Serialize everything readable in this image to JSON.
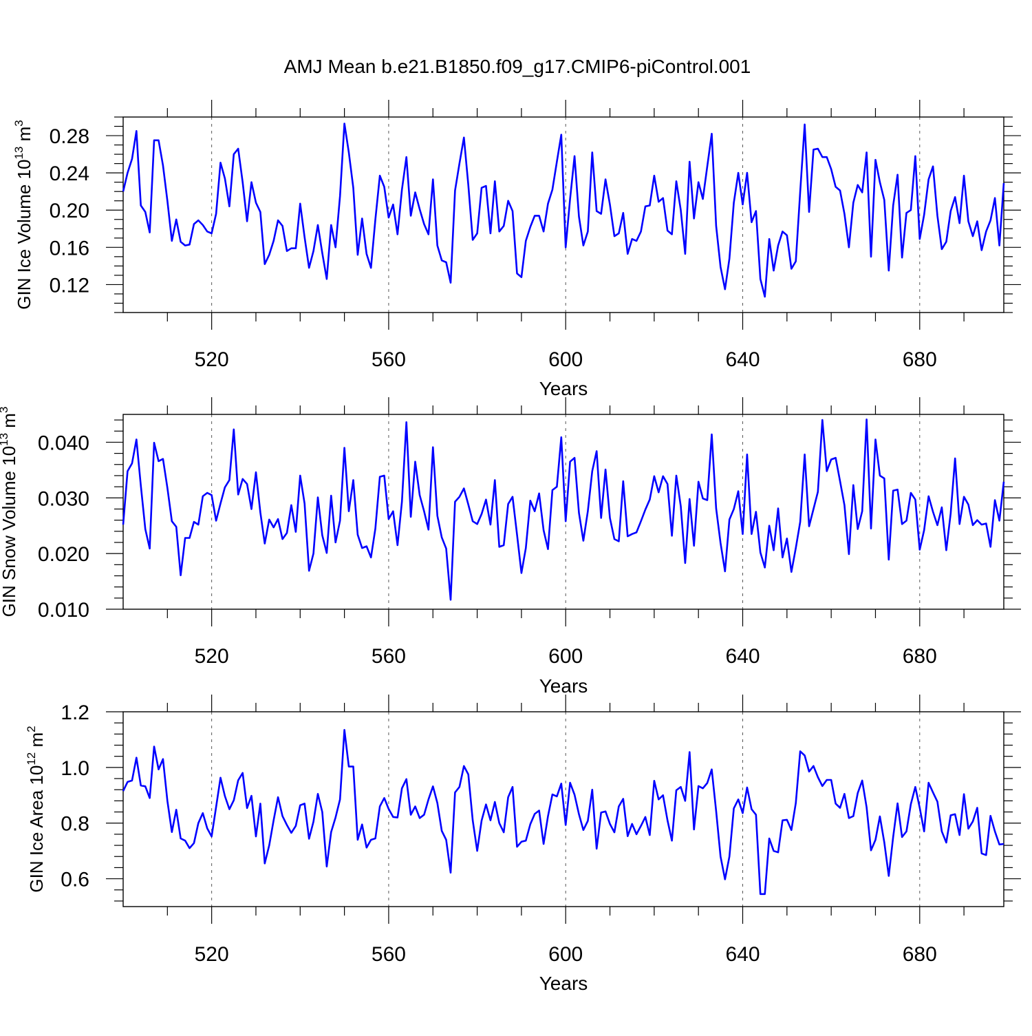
{
  "title": "AMJ Mean b.e21.B1850.f09_g17.CMIP6-piControl.001",
  "colors": {
    "line": "#0000ff",
    "axis": "#000000",
    "grid": "#555555"
  },
  "chart_data": [
    {
      "type": "line",
      "ylabel": "GIN Ice Volume 10",
      "ylabel_sup": "13",
      "ylabel_unit": " m",
      "ylabel_unit_sup": "3",
      "xlabel": "Years",
      "xlim": [
        500,
        699
      ],
      "ylim": [
        0.09,
        0.3
      ],
      "xticks": [
        520,
        560,
        600,
        640,
        680
      ],
      "xtick_labels": [
        "520",
        "560",
        "600",
        "640",
        "680"
      ],
      "yticks": [
        0.12,
        0.16,
        0.2,
        0.24,
        0.28
      ],
      "ytick_labels": [
        "0.12",
        "0.16",
        "0.20",
        "0.24",
        "0.28"
      ],
      "y_minor_step": 0.01,
      "x_minor_step": 10,
      "x_start": 500,
      "series": [
        {
          "values": [
            0.22,
            0.24,
            0.255,
            0.285,
            0.205,
            0.198,
            0.176,
            0.275,
            0.275,
            0.248,
            0.21,
            0.167,
            0.19,
            0.166,
            0.162,
            0.163,
            0.185,
            0.189,
            0.184,
            0.177,
            0.175,
            0.196,
            0.251,
            0.234,
            0.204,
            0.26,
            0.266,
            0.23,
            0.188,
            0.23,
            0.208,
            0.198,
            0.142,
            0.152,
            0.167,
            0.189,
            0.183,
            0.156,
            0.159,
            0.159,
            0.207,
            0.171,
            0.138,
            0.156,
            0.184,
            0.154,
            0.126,
            0.184,
            0.16,
            0.215,
            0.293,
            0.262,
            0.224,
            0.152,
            0.191,
            0.153,
            0.138,
            0.19,
            0.237,
            0.225,
            0.192,
            0.206,
            0.174,
            0.222,
            0.257,
            0.194,
            0.219,
            0.201,
            0.185,
            0.174,
            0.233,
            0.162,
            0.146,
            0.144,
            0.122,
            0.221,
            0.25,
            0.278,
            0.227,
            0.168,
            0.175,
            0.224,
            0.226,
            0.175,
            0.231,
            0.177,
            0.183,
            0.21,
            0.199,
            0.132,
            0.128,
            0.167,
            0.182,
            0.194,
            0.194,
            0.177,
            0.207,
            0.222,
            0.252,
            0.281,
            0.16,
            0.212,
            0.258,
            0.193,
            0.162,
            0.177,
            0.262,
            0.199,
            0.196,
            0.233,
            0.206,
            0.172,
            0.175,
            0.197,
            0.153,
            0.169,
            0.167,
            0.177,
            0.204,
            0.205,
            0.237,
            0.209,
            0.213,
            0.178,
            0.174,
            0.231,
            0.2,
            0.153,
            0.252,
            0.191,
            0.23,
            0.212,
            0.247,
            0.282,
            0.183,
            0.139,
            0.115,
            0.148,
            0.208,
            0.24,
            0.206,
            0.24,
            0.187,
            0.199,
            0.126,
            0.107,
            0.169,
            0.135,
            0.162,
            0.177,
            0.173,
            0.137,
            0.145,
            0.22,
            0.292,
            0.198,
            0.265,
            0.266,
            0.257,
            0.257,
            0.244,
            0.225,
            0.221,
            0.196,
            0.16,
            0.208,
            0.227,
            0.219,
            0.262,
            0.15,
            0.254,
            0.23,
            0.211,
            0.135,
            0.205,
            0.238,
            0.149,
            0.197,
            0.2,
            0.258,
            0.169,
            0.195,
            0.233,
            0.247,
            0.194,
            0.158,
            0.166,
            0.199,
            0.214,
            0.186,
            0.237,
            0.188,
            0.172,
            0.188,
            0.157,
            0.177,
            0.189,
            0.213,
            0.162,
            0.229
          ]
        }
      ]
    },
    {
      "type": "line",
      "ylabel": "GIN Snow Volume 10",
      "ylabel_sup": "13",
      "ylabel_unit": " m",
      "ylabel_unit_sup": "3",
      "xlabel": "Years",
      "xlim": [
        500,
        699
      ],
      "ylim": [
        0.01,
        0.045
      ],
      "xticks": [
        520,
        560,
        600,
        640,
        680
      ],
      "xtick_labels": [
        "520",
        "560",
        "600",
        "640",
        "680"
      ],
      "yticks": [
        0.01,
        0.02,
        0.03,
        0.04
      ],
      "ytick_labels": [
        "0.010",
        "0.020",
        "0.030",
        "0.040"
      ],
      "y_minor_step": 0.002,
      "x_minor_step": 10,
      "x_start": 500,
      "series": [
        {
          "values": [
            0.0252,
            0.0348,
            0.0362,
            0.0405,
            0.0322,
            0.0244,
            0.0209,
            0.0399,
            0.0366,
            0.037,
            0.0318,
            0.0258,
            0.0248,
            0.0161,
            0.0228,
            0.0228,
            0.0257,
            0.0252,
            0.0303,
            0.0309,
            0.0305,
            0.0259,
            0.029,
            0.0319,
            0.0332,
            0.0423,
            0.0306,
            0.0334,
            0.0325,
            0.028,
            0.0346,
            0.0274,
            0.0218,
            0.0261,
            0.0247,
            0.0262,
            0.0226,
            0.0237,
            0.0287,
            0.0239,
            0.034,
            0.029,
            0.0169,
            0.02,
            0.0301,
            0.0233,
            0.0201,
            0.0304,
            0.022,
            0.0259,
            0.039,
            0.0276,
            0.0332,
            0.0234,
            0.021,
            0.0213,
            0.0193,
            0.0245,
            0.0338,
            0.034,
            0.0262,
            0.0276,
            0.0215,
            0.0293,
            0.0436,
            0.0266,
            0.0365,
            0.0305,
            0.0276,
            0.0243,
            0.0391,
            0.0268,
            0.0229,
            0.0209,
            0.0117,
            0.0293,
            0.0302,
            0.0317,
            0.0288,
            0.0258,
            0.0253,
            0.0271,
            0.0297,
            0.0252,
            0.0332,
            0.0212,
            0.0215,
            0.0289,
            0.0302,
            0.0234,
            0.0165,
            0.021,
            0.0295,
            0.0276,
            0.0308,
            0.0242,
            0.0208,
            0.0314,
            0.032,
            0.0409,
            0.0258,
            0.0365,
            0.0372,
            0.0273,
            0.0223,
            0.0276,
            0.0348,
            0.0384,
            0.0264,
            0.0351,
            0.0264,
            0.0226,
            0.0222,
            0.033,
            0.0231,
            0.0235,
            0.0238,
            0.0258,
            0.0279,
            0.0297,
            0.0339,
            0.031,
            0.0339,
            0.0325,
            0.0232,
            0.034,
            0.0285,
            0.0183,
            0.0298,
            0.0214,
            0.0329,
            0.0299,
            0.0296,
            0.0414,
            0.0281,
            0.0219,
            0.0168,
            0.0261,
            0.028,
            0.0312,
            0.0235,
            0.0378,
            0.0235,
            0.0275,
            0.0202,
            0.0175,
            0.025,
            0.0206,
            0.0281,
            0.0193,
            0.0227,
            0.0167,
            0.021,
            0.0257,
            0.0378,
            0.0249,
            0.028,
            0.0311,
            0.044,
            0.0348,
            0.0369,
            0.0372,
            0.033,
            0.0287,
            0.0199,
            0.0323,
            0.0244,
            0.0276,
            0.0441,
            0.0245,
            0.0405,
            0.034,
            0.0335,
            0.0189,
            0.0313,
            0.0315,
            0.0253,
            0.0259,
            0.0309,
            0.0297,
            0.0207,
            0.0242,
            0.0303,
            0.0275,
            0.0251,
            0.0283,
            0.0206,
            0.0272,
            0.0371,
            0.0253,
            0.0302,
            0.0288,
            0.0251,
            0.026,
            0.0252,
            0.0254,
            0.0212,
            0.0296,
            0.0259,
            0.0329
          ]
        }
      ]
    },
    {
      "type": "line",
      "ylabel": "GIN Ice Area 10",
      "ylabel_sup": "12",
      "ylabel_unit": " m",
      "ylabel_unit_sup": "2",
      "xlabel": "Years",
      "xlim": [
        500,
        699
      ],
      "ylim": [
        0.5,
        1.2
      ],
      "xticks": [
        520,
        560,
        600,
        640,
        680
      ],
      "xtick_labels": [
        "520",
        "560",
        "600",
        "640",
        "680"
      ],
      "yticks": [
        0.6,
        0.8,
        1.0,
        1.2
      ],
      "ytick_labels": [
        "0.6",
        "0.8",
        "1.0",
        "1.2"
      ],
      "y_minor_step": 0.04,
      "x_minor_step": 10,
      "x_start": 500,
      "series": [
        {
          "values": [
            0.915,
            0.948,
            0.953,
            1.035,
            0.935,
            0.932,
            0.89,
            1.075,
            0.993,
            1.03,
            0.88,
            0.768,
            0.848,
            0.745,
            0.737,
            0.71,
            0.728,
            0.8,
            0.836,
            0.781,
            0.752,
            0.858,
            0.963,
            0.897,
            0.85,
            0.882,
            0.954,
            0.98,
            0.854,
            0.898,
            0.752,
            0.87,
            0.655,
            0.72,
            0.81,
            0.893,
            0.825,
            0.793,
            0.765,
            0.79,
            0.864,
            0.87,
            0.744,
            0.805,
            0.905,
            0.84,
            0.644,
            0.768,
            0.82,
            0.885,
            1.135,
            1.003,
            1.003,
            0.74,
            0.795,
            0.712,
            0.74,
            0.745,
            0.86,
            0.89,
            0.851,
            0.822,
            0.82,
            0.925,
            0.958,
            0.83,
            0.86,
            0.818,
            0.83,
            0.885,
            0.932,
            0.872,
            0.772,
            0.74,
            0.622,
            0.91,
            0.93,
            1.005,
            0.975,
            0.81,
            0.7,
            0.809,
            0.867,
            0.81,
            0.876,
            0.8,
            0.767,
            0.893,
            0.93,
            0.715,
            0.733,
            0.737,
            0.796,
            0.833,
            0.845,
            0.725,
            0.825,
            0.903,
            0.896,
            0.942,
            0.793,
            0.945,
            0.902,
            0.832,
            0.775,
            0.808,
            0.92,
            0.708,
            0.838,
            0.842,
            0.797,
            0.767,
            0.86,
            0.887,
            0.753,
            0.797,
            0.76,
            0.79,
            0.822,
            0.757,
            0.952,
            0.885,
            0.9,
            0.81,
            0.737,
            0.918,
            0.93,
            0.88,
            1.055,
            0.777,
            0.933,
            0.925,
            0.944,
            0.993,
            0.843,
            0.68,
            0.598,
            0.68,
            0.853,
            0.885,
            0.836,
            0.928,
            0.85,
            0.83,
            0.545,
            0.545,
            0.745,
            0.7,
            0.695,
            0.81,
            0.812,
            0.775,
            0.872,
            1.058,
            1.043,
            0.985,
            1.005,
            0.965,
            0.933,
            0.955,
            0.955,
            0.87,
            0.855,
            0.905,
            0.818,
            0.825,
            0.908,
            0.953,
            0.857,
            0.702,
            0.74,
            0.824,
            0.731,
            0.61,
            0.75,
            0.871,
            0.75,
            0.77,
            0.868,
            0.93,
            0.855,
            0.77,
            0.945,
            0.91,
            0.877,
            0.77,
            0.73,
            0.828,
            0.832,
            0.757,
            0.904,
            0.78,
            0.806,
            0.855,
            0.691,
            0.685,
            0.826,
            0.77,
            0.723,
            0.725
          ]
        }
      ]
    }
  ]
}
